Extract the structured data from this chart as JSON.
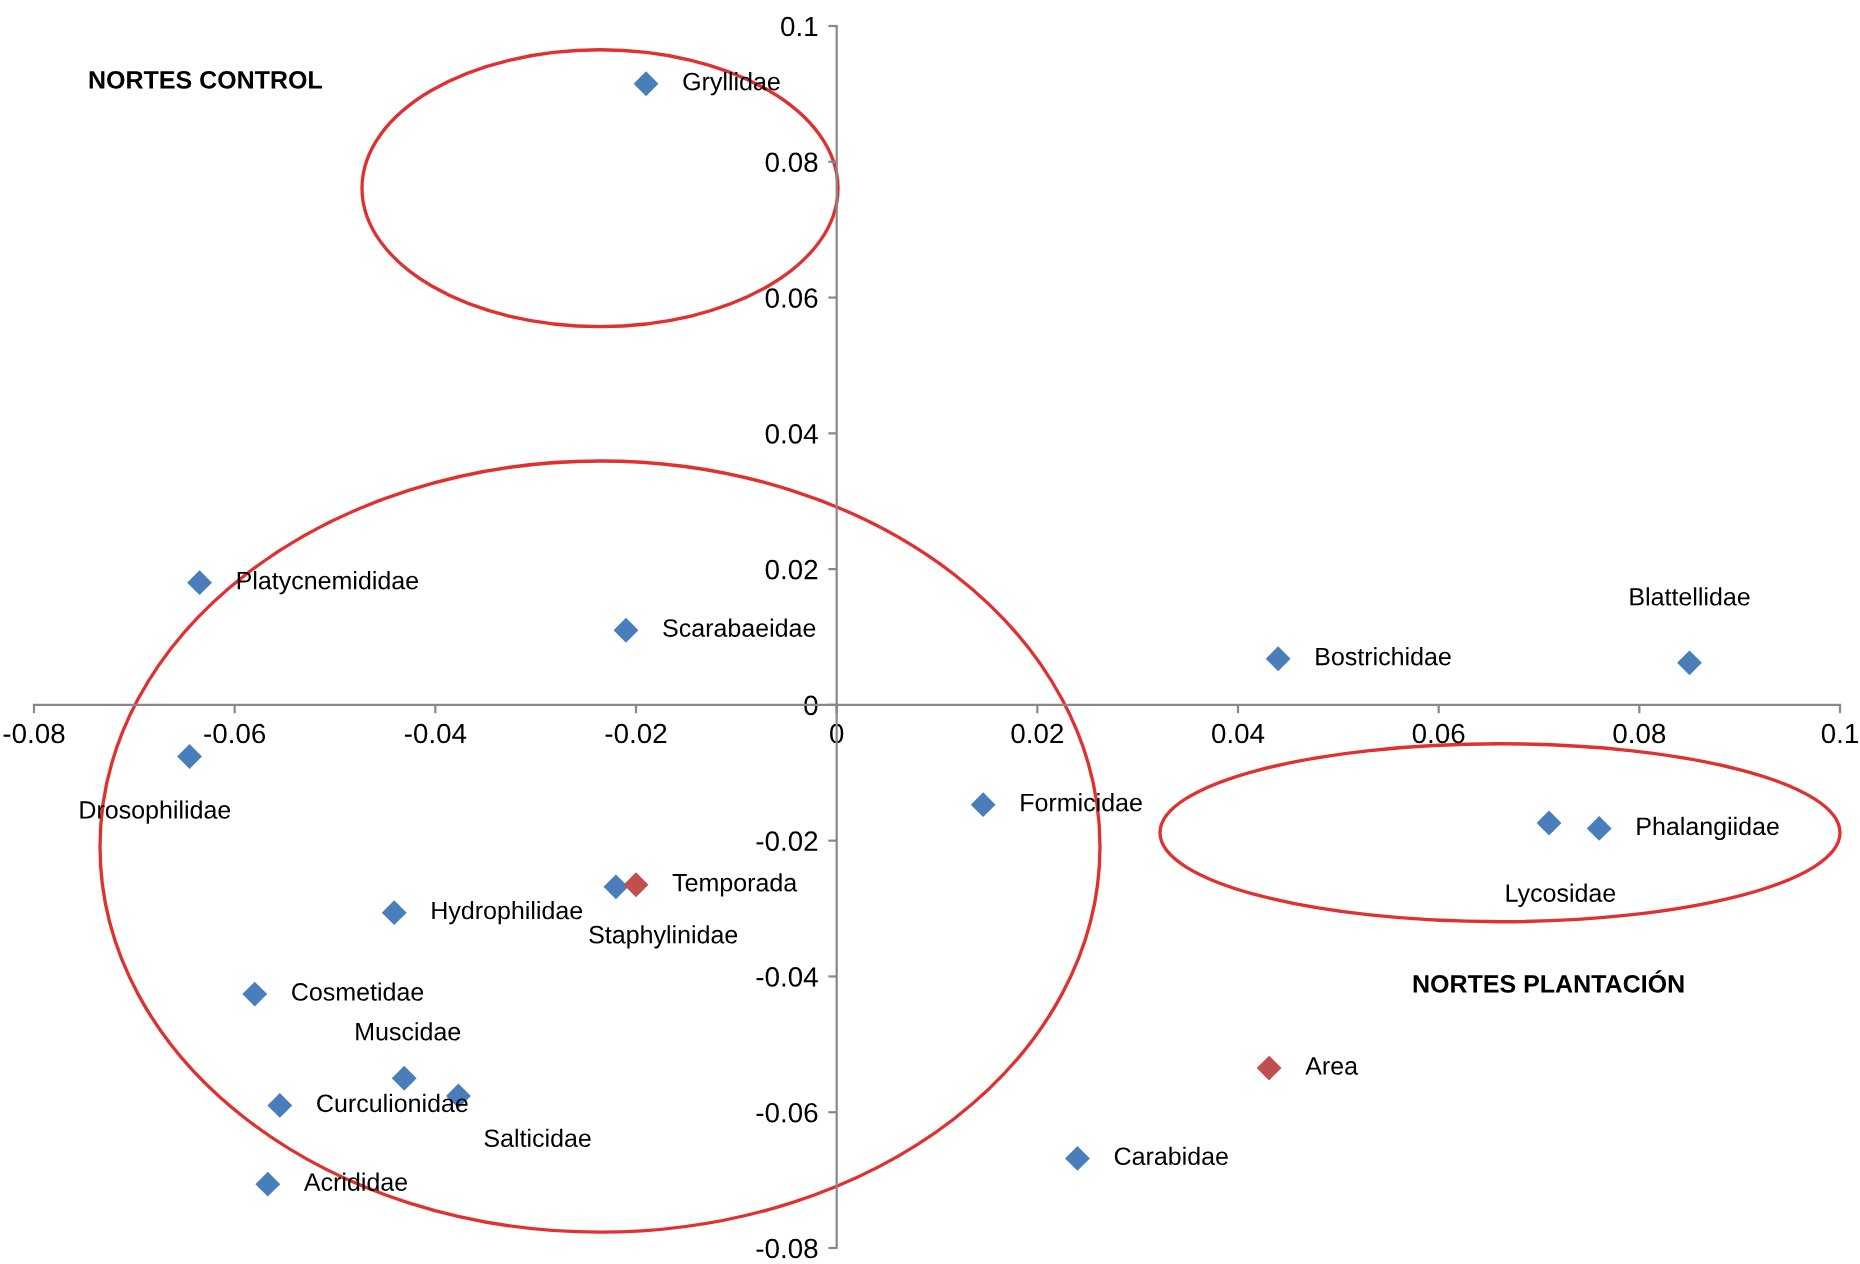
{
  "chart_data": {
    "type": "scatter",
    "marker": "diamond",
    "grid": false,
    "legend": false,
    "xlim": [
      -0.08,
      0.1
    ],
    "ylim": [
      -0.08,
      0.1
    ],
    "xticks": [
      -0.08,
      -0.06,
      -0.04,
      -0.02,
      0,
      0.02,
      0.04,
      0.06,
      0.08,
      0.1
    ],
    "yticks": [
      -0.08,
      -0.06,
      -0.04,
      -0.02,
      0,
      0.02,
      0.04,
      0.06,
      0.08,
      0.1
    ],
    "series": [
      {
        "color": "#4a7ebb",
        "x": [
          -0.019,
          -0.0635,
          -0.021,
          -0.0645,
          0.044,
          0.085,
          0.0146,
          0.071,
          0.076,
          -0.0441,
          -0.022,
          -0.058,
          -0.0431,
          -0.0377,
          -0.0555,
          -0.0567,
          0.024
        ],
        "values": [
          0.0915,
          0.018,
          0.011,
          -0.0076,
          0.0068,
          0.0062,
          -0.0147,
          -0.0174,
          -0.0182,
          -0.0306,
          -0.0268,
          -0.0426,
          -0.055,
          -0.0576,
          -0.059,
          -0.0706,
          -0.0668
        ]
      },
      {
        "color": "#c0504d",
        "x": [
          -0.02,
          0.0431
        ],
        "values": [
          -0.0265,
          -0.0535
        ]
      }
    ],
    "annotations": [
      {
        "text": "Gryllidae",
        "x": -0.019,
        "y": 0.0915
      },
      {
        "text": "Platycnemididae",
        "x": -0.0635,
        "y": 0.018
      },
      {
        "text": "Scarabaeidae",
        "x": -0.021,
        "y": 0.011
      },
      {
        "text": "Drosophilidae",
        "x": -0.0645,
        "y": -0.0076
      },
      {
        "text": "Bostrichidae",
        "x": 0.044,
        "y": 0.0068
      },
      {
        "text": "Blattellidae",
        "x": 0.085,
        "y": 0.0062
      },
      {
        "text": "Formicidae",
        "x": 0.0146,
        "y": -0.0147
      },
      {
        "text": "Lycosidae",
        "x": 0.071,
        "y": -0.0174
      },
      {
        "text": "Phalangiidae",
        "x": 0.076,
        "y": -0.0182
      },
      {
        "text": "Hydrophilidae",
        "x": -0.0441,
        "y": -0.0306
      },
      {
        "text": "Staphylinidae",
        "x": -0.022,
        "y": -0.0268
      },
      {
        "text": "Cosmetidae",
        "x": -0.058,
        "y": -0.0426
      },
      {
        "text": "Muscidae",
        "x": -0.0431,
        "y": -0.055
      },
      {
        "text": "Salticidae",
        "x": -0.0377,
        "y": -0.0576
      },
      {
        "text": "Curculionidae",
        "x": -0.0555,
        "y": -0.059
      },
      {
        "text": "Acrididae",
        "x": -0.0567,
        "y": -0.0706
      },
      {
        "text": "Carabidae",
        "x": 0.024,
        "y": -0.0668
      },
      {
        "text": "Temporada",
        "x": -0.02,
        "y": -0.0265
      },
      {
        "text": "Area",
        "x": 0.0431,
        "y": -0.0535
      },
      "NORTES CONTROL",
      "NORTES PLANTACIÓN"
    ]
  }
}
